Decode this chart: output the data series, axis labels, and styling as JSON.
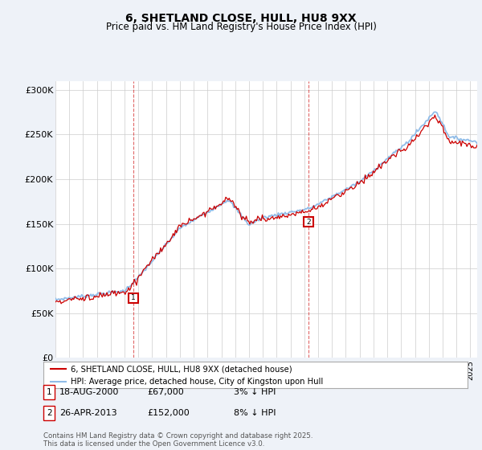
{
  "title": "6, SHETLAND CLOSE, HULL, HU8 9XX",
  "subtitle": "Price paid vs. HM Land Registry's House Price Index (HPI)",
  "ylim": [
    0,
    310000
  ],
  "yticks": [
    0,
    50000,
    100000,
    150000,
    200000,
    250000,
    300000
  ],
  "ytick_labels": [
    "£0",
    "£50K",
    "£100K",
    "£150K",
    "£200K",
    "£250K",
    "£300K"
  ],
  "background_color": "#eef2f8",
  "plot_bg_color": "#ffffff",
  "hpi_color": "#90bce8",
  "price_color": "#cc0000",
  "marker1_date": 2000.63,
  "marker1_price": 67000,
  "marker1_label": "18-AUG-2000",
  "marker1_value": "£67,000",
  "marker1_note": "3% ↓ HPI",
  "marker2_date": 2013.32,
  "marker2_price": 152000,
  "marker2_label": "26-APR-2013",
  "marker2_value": "£152,000",
  "marker2_note": "8% ↓ HPI",
  "legend_line1": "6, SHETLAND CLOSE, HULL, HU8 9XX (detached house)",
  "legend_line2": "HPI: Average price, detached house, City of Kingston upon Hull",
  "footer": "Contains HM Land Registry data © Crown copyright and database right 2025.\nThis data is licensed under the Open Government Licence v3.0.",
  "xmin": 1995,
  "xmax": 2025.5,
  "title_fontsize": 10,
  "subtitle_fontsize": 8.5
}
